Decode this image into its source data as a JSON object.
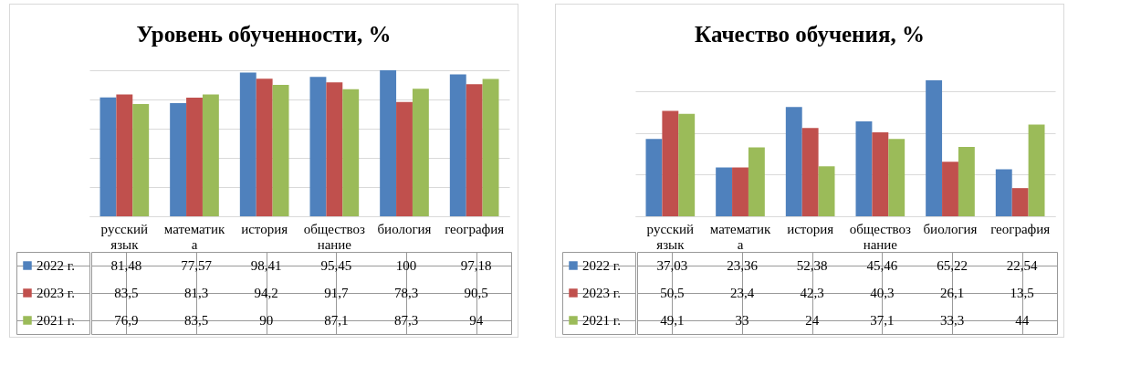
{
  "chart_data": [
    {
      "type": "bar",
      "title": "Уровень обученности, %",
      "categories": [
        "русский язык",
        "математика",
        "история",
        "обществознание",
        "биология",
        "география"
      ],
      "series": [
        {
          "name": "2022 г.",
          "color": "#4f81bd",
          "values": [
            81.48,
            77.57,
            98.41,
            95.45,
            100,
            97.18
          ],
          "value_labels": [
            "81,48",
            "77,57",
            "98,41",
            "95,45",
            "100",
            "97,18"
          ]
        },
        {
          "name": "2023 г.",
          "color": "#c0504d",
          "values": [
            83.5,
            81.3,
            94.2,
            91.7,
            78.3,
            90.5
          ],
          "value_labels": [
            "83,5",
            "81,3",
            "94,2",
            "91,7",
            "78,3",
            "90,5"
          ]
        },
        {
          "name": "2021 г.",
          "color": "#9bbb59",
          "values": [
            76.9,
            83.5,
            90,
            87.1,
            87.3,
            94
          ],
          "value_labels": [
            "76,9",
            "83,5",
            "90",
            "87,1",
            "87,3",
            "94"
          ]
        }
      ],
      "grid": "y",
      "legend": "bottom",
      "tick_labels": "x"
    },
    {
      "type": "bar",
      "title": "Качество обучения, %",
      "categories": [
        "русский язык",
        "математика",
        "история",
        "обществознание",
        "биология",
        "география"
      ],
      "series": [
        {
          "name": "2022 г.",
          "color": "#4f81bd",
          "values": [
            37.03,
            23.36,
            52.38,
            45.46,
            65.22,
            22.54
          ],
          "value_labels": [
            "37,03",
            "23,36",
            "52,38",
            "45,46",
            "65,22",
            "22,54"
          ]
        },
        {
          "name": "2023 г.",
          "color": "#c0504d",
          "values": [
            50.5,
            23.4,
            42.3,
            40.3,
            26.1,
            13.5
          ],
          "value_labels": [
            "50,5",
            "23,4",
            "42,3",
            "40,3",
            "26,1",
            "13,5"
          ]
        },
        {
          "name": "2021 г.",
          "color": "#9bbb59",
          "values": [
            49.1,
            33,
            24,
            37.1,
            33.3,
            44
          ],
          "value_labels": [
            "49,1",
            "33",
            "24",
            "37,1",
            "33,3",
            "44"
          ]
        }
      ],
      "grid": "y",
      "legend": "bottom",
      "tick_labels": "x"
    }
  ]
}
